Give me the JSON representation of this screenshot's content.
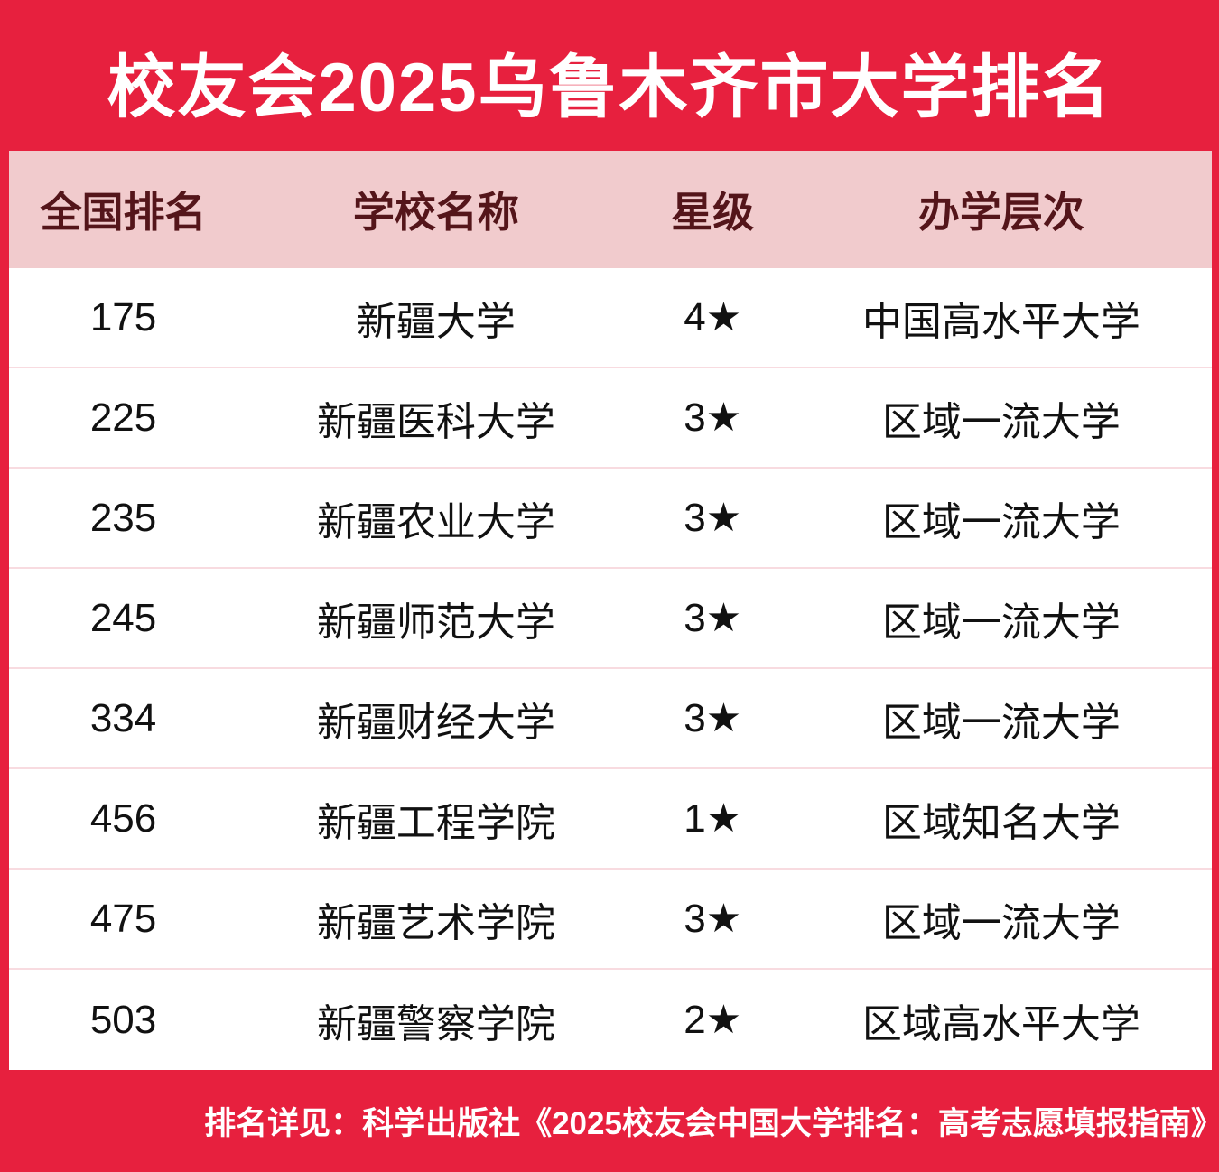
{
  "title": "校友会2025乌鲁木齐市大学排名",
  "table": {
    "headers": {
      "rank": "全国排名",
      "school": "学校名称",
      "stars": "星级",
      "level": "办学层次"
    },
    "rows": [
      {
        "rank": "175",
        "school": "新疆大学",
        "stars": "4★",
        "level": "中国高水平大学"
      },
      {
        "rank": "225",
        "school": "新疆医科大学",
        "stars": "3★",
        "level": "区域一流大学"
      },
      {
        "rank": "235",
        "school": "新疆农业大学",
        "stars": "3★",
        "level": "区域一流大学"
      },
      {
        "rank": "245",
        "school": "新疆师范大学",
        "stars": "3★",
        "level": "区域一流大学"
      },
      {
        "rank": "334",
        "school": "新疆财经大学",
        "stars": "3★",
        "level": "区域一流大学"
      },
      {
        "rank": "456",
        "school": "新疆工程学院",
        "stars": "1★",
        "level": "区域知名大学"
      },
      {
        "rank": "475",
        "school": "新疆艺术学院",
        "stars": "3★",
        "level": "区域一流大学"
      },
      {
        "rank": "503",
        "school": "新疆警察学院",
        "stars": "2★",
        "level": "区域高水平大学"
      }
    ]
  },
  "footer": {
    "note": "排名详见：科学出版社《2025校友会中国大学排名：高考志愿填报指南》"
  },
  "colors": {
    "background_red": "#E7203E",
    "header_pink": "#F1CBCD",
    "header_text_maroon": "#54151A",
    "row_text": "#111111",
    "divider_pink": "#F8DBE0",
    "title_white": "#FFFFFF"
  },
  "chart_data": {
    "type": "table",
    "title": "校友会2025乌鲁木齐市大学排名",
    "columns": [
      "全国排名",
      "学校名称",
      "星级",
      "办学层次"
    ],
    "rows": [
      [
        175,
        "新疆大学",
        "4★",
        "中国高水平大学"
      ],
      [
        225,
        "新疆医科大学",
        "3★",
        "区域一流大学"
      ],
      [
        235,
        "新疆农业大学",
        "3★",
        "区域一流大学"
      ],
      [
        245,
        "新疆师范大学",
        "3★",
        "区域一流大学"
      ],
      [
        334,
        "新疆财经大学",
        "3★",
        "区域一流大学"
      ],
      [
        456,
        "新疆工程学院",
        "1★",
        "区域知名大学"
      ],
      [
        475,
        "新疆艺术学院",
        "3★",
        "区域一流大学"
      ],
      [
        503,
        "新疆警察学院",
        "2★",
        "区域高水平大学"
      ]
    ],
    "footnote": "排名详见：科学出版社《2025校友会中国大学排名：高考志愿填报指南》"
  }
}
